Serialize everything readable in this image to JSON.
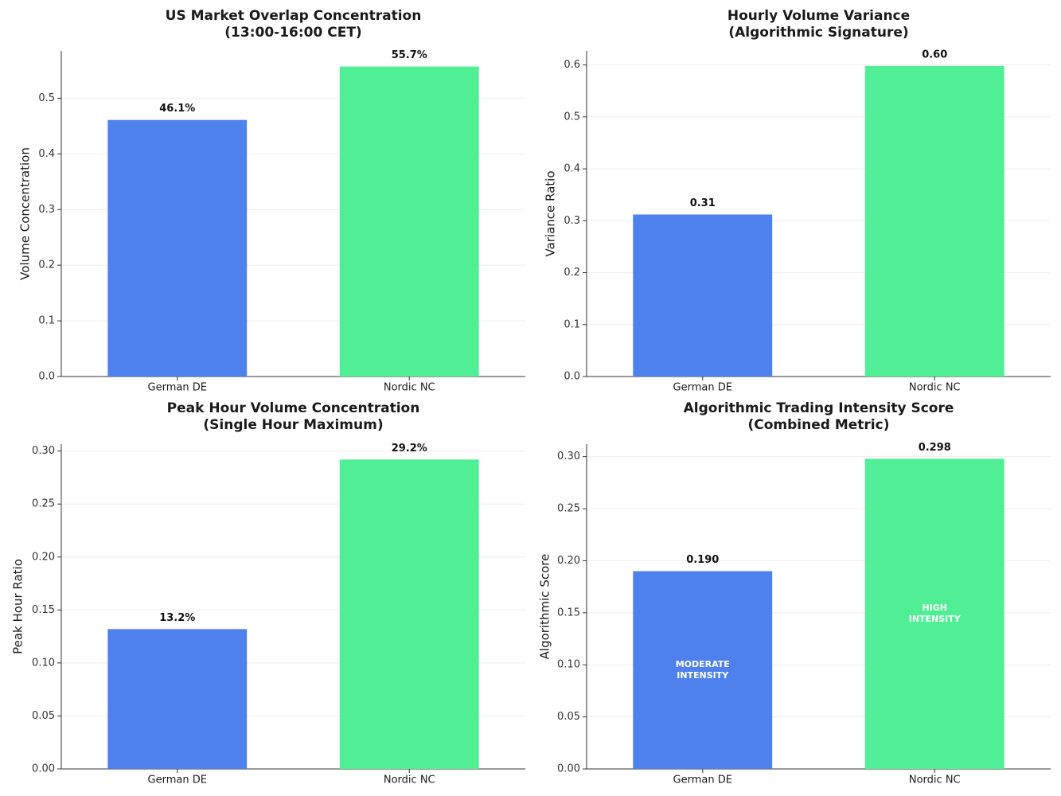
{
  "colors": {
    "german": "#4f81ed",
    "nordic": "#51ef95"
  },
  "chart_data": [
    {
      "type": "bar",
      "title_lines": [
        "US Market Overlap Concentration",
        "(13:00-16:00 CET)"
      ],
      "ylabel": "Volume Concentration",
      "categories": [
        "German DE",
        "Nordic NC"
      ],
      "values": [
        0.461,
        0.557
      ],
      "value_labels": [
        "46.1%",
        "55.7%"
      ],
      "inner_labels": [
        [],
        []
      ],
      "ylim": [
        0,
        0.585
      ],
      "yticks": [
        0.0,
        0.1,
        0.2,
        0.3,
        0.4,
        0.5
      ],
      "ytick_labels": [
        "0.0",
        "0.1",
        "0.2",
        "0.3",
        "0.4",
        "0.5"
      ],
      "grid": true
    },
    {
      "type": "bar",
      "title_lines": [
        "Hourly Volume Variance",
        "(Algorithmic Signature)"
      ],
      "ylabel": "Variance Ratio",
      "categories": [
        "German DE",
        "Nordic NC"
      ],
      "values": [
        0.312,
        0.598
      ],
      "value_labels": [
        "0.31",
        "0.60"
      ],
      "inner_labels": [
        [],
        []
      ],
      "ylim": [
        0,
        0.627
      ],
      "yticks": [
        0.0,
        0.1,
        0.2,
        0.3,
        0.4,
        0.5,
        0.6
      ],
      "ytick_labels": [
        "0.0",
        "0.1",
        "0.2",
        "0.3",
        "0.4",
        "0.5",
        "0.6"
      ],
      "grid": true
    },
    {
      "type": "bar",
      "title_lines": [
        "Peak Hour Volume Concentration",
        "(Single Hour Maximum)"
      ],
      "ylabel": "Peak Hour Ratio",
      "categories": [
        "German DE",
        "Nordic NC"
      ],
      "values": [
        0.132,
        0.292
      ],
      "value_labels": [
        "13.2%",
        "29.2%"
      ],
      "inner_labels": [
        [],
        []
      ],
      "ylim": [
        0,
        0.3065
      ],
      "yticks": [
        0.0,
        0.05,
        0.1,
        0.15,
        0.2,
        0.25,
        0.3
      ],
      "ytick_labels": [
        "0.00",
        "0.05",
        "0.10",
        "0.15",
        "0.20",
        "0.25",
        "0.30"
      ],
      "grid": true
    },
    {
      "type": "bar",
      "title_lines": [
        "Algorithmic Trading Intensity Score",
        "(Combined Metric)"
      ],
      "ylabel": "Algorithmic Score",
      "categories": [
        "German DE",
        "Nordic NC"
      ],
      "values": [
        0.19,
        0.298
      ],
      "value_labels": [
        "0.190",
        "0.298"
      ],
      "inner_labels": [
        [
          "MODERATE",
          "INTENSITY"
        ],
        [
          "HIGH",
          "INTENSITY"
        ]
      ],
      "ylim": [
        0,
        0.312
      ],
      "yticks": [
        0.0,
        0.05,
        0.1,
        0.15,
        0.2,
        0.25,
        0.3
      ],
      "ytick_labels": [
        "0.00",
        "0.05",
        "0.10",
        "0.15",
        "0.20",
        "0.25",
        "0.30"
      ],
      "grid": true
    }
  ]
}
